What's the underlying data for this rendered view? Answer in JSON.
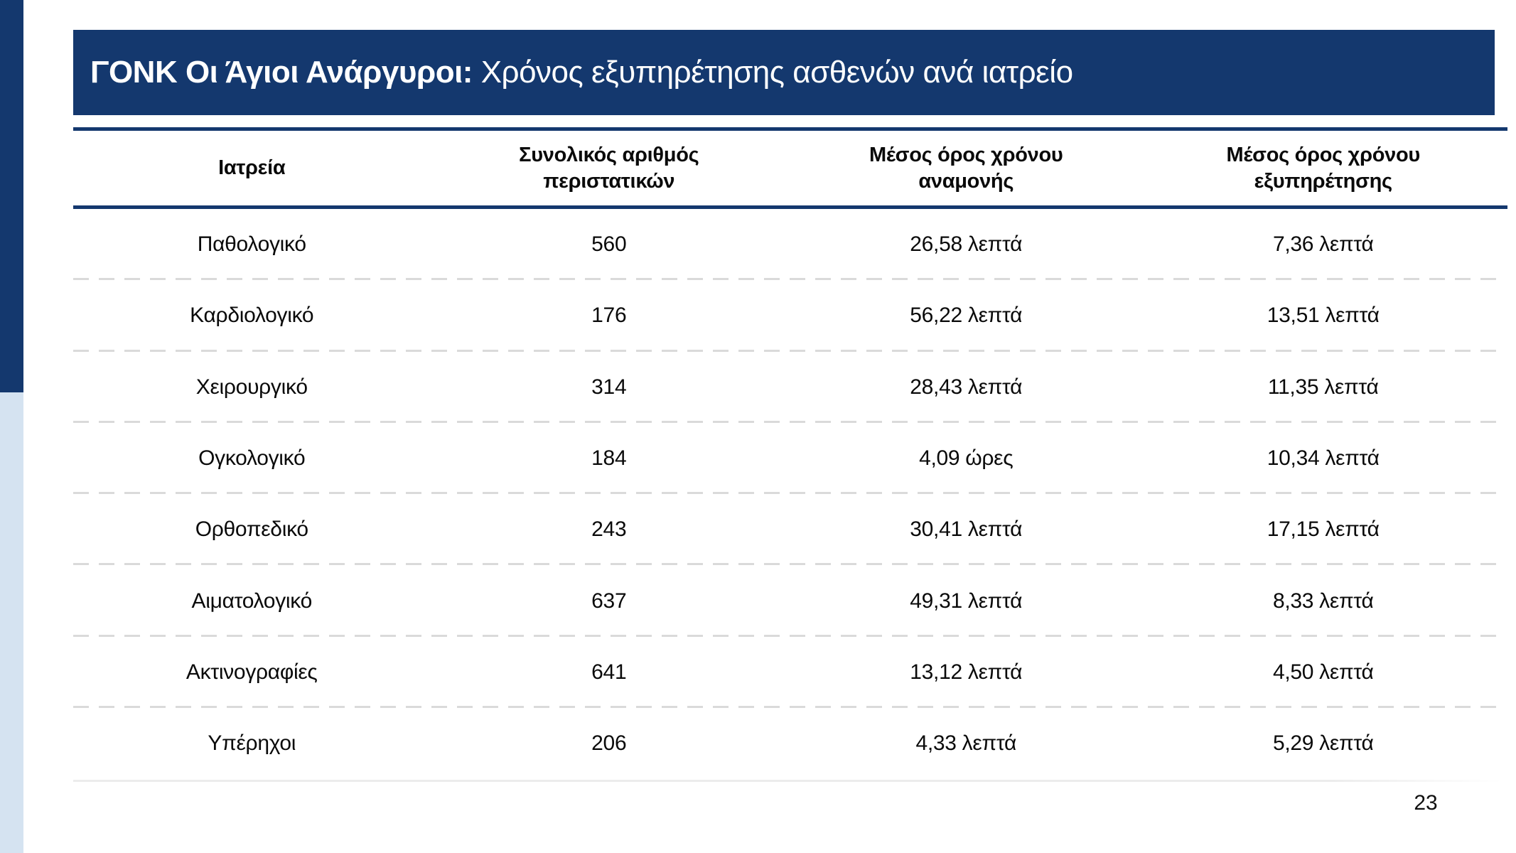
{
  "colors": {
    "navy": "#14386e",
    "light_blue": "#d5e3f1",
    "separator_gray": "#dadada"
  },
  "banner": {
    "title_bold": "ΓΟΝΚ Οι Άγιοι Ανάργυροι:",
    "title_rest": " Χρόνος εξυπηρέτησης ασθενών ανά ιατρείο"
  },
  "table": {
    "columns": [
      "Ιατρεία",
      "Συνολικός αριθμός\nπεριστατικών",
      "Μέσος όρος χρόνου\nαναμονής",
      "Μέσος όρος χρόνου\nεξυπηρέτησης"
    ],
    "rows": [
      [
        "Παθολογικό",
        "560",
        "26,58 λεπτά",
        "7,36 λεπτά"
      ],
      [
        "Καρδιολογικό",
        "176",
        "56,22 λεπτά",
        "13,51 λεπτά"
      ],
      [
        "Χειρουργικό",
        "314",
        "28,43 λεπτά",
        "11,35 λεπτά"
      ],
      [
        "Ογκολογικό",
        "184",
        "4,09 ώρες",
        "10,34 λεπτά"
      ],
      [
        "Ορθοπεδικό",
        "243",
        "30,41 λεπτά",
        "17,15 λεπτά"
      ],
      [
        "Αιματολογικό",
        "637",
        "49,31 λεπτά",
        "8,33 λεπτά"
      ],
      [
        "Ακτινογραφίες",
        "641",
        "13,12 λεπτά",
        "4,50 λεπτά"
      ],
      [
        "Υπέρηχοι",
        "206",
        "4,33 λεπτά",
        "5,29 λεπτά"
      ]
    ]
  },
  "footer": {
    "page_number": "23"
  }
}
